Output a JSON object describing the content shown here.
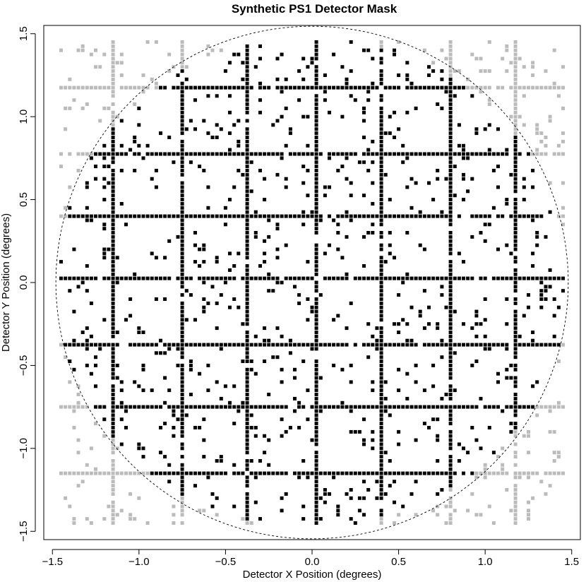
{
  "chart_data": {
    "type": "scatter",
    "title": "Synthetic PS1 Detector Mask",
    "xlabel": "Detector X Position (degrees)",
    "ylabel": "Detector Y Position (degrees)",
    "xlim": [
      -1.55,
      1.55
    ],
    "ylim": [
      -1.55,
      1.55
    ],
    "x_ticks": [
      -1.5,
      -1.0,
      -0.5,
      0.0,
      0.5,
      1.0,
      1.5
    ],
    "y_ticks": [
      -1.5,
      -1.0,
      -0.5,
      0.0,
      0.5,
      1.0,
      1.5
    ],
    "x_tick_labels": [
      "−1.5",
      "−1.0",
      "−0.5",
      "0.0",
      "0.5",
      "1.0",
      "1.5"
    ],
    "y_tick_labels": [
      "−1.5",
      "−1.0",
      "−0.5",
      "0.0",
      "0.5",
      "1.0",
      "1.5"
    ],
    "grid": false,
    "legend": "none",
    "field_of_view_radius": 1.48,
    "grid_spacing": 0.025,
    "chip_gap_x": [
      -1.15,
      -0.76,
      -0.37,
      0.02,
      0.41,
      0.8,
      1.18
    ],
    "chip_gap_y": [
      -1.14,
      -0.76,
      -0.37,
      0.02,
      0.4,
      0.78,
      1.17
    ],
    "random_masked_fraction": 0.065,
    "colors": {
      "inside_fov": "#000000",
      "outside_fov": "#bbbbbb",
      "boundary": "#000000"
    },
    "series": [
      {
        "role": "masked-inside",
        "color": "#000000"
      },
      {
        "role": "masked-outside",
        "color": "#bbbbbb"
      }
    ]
  }
}
